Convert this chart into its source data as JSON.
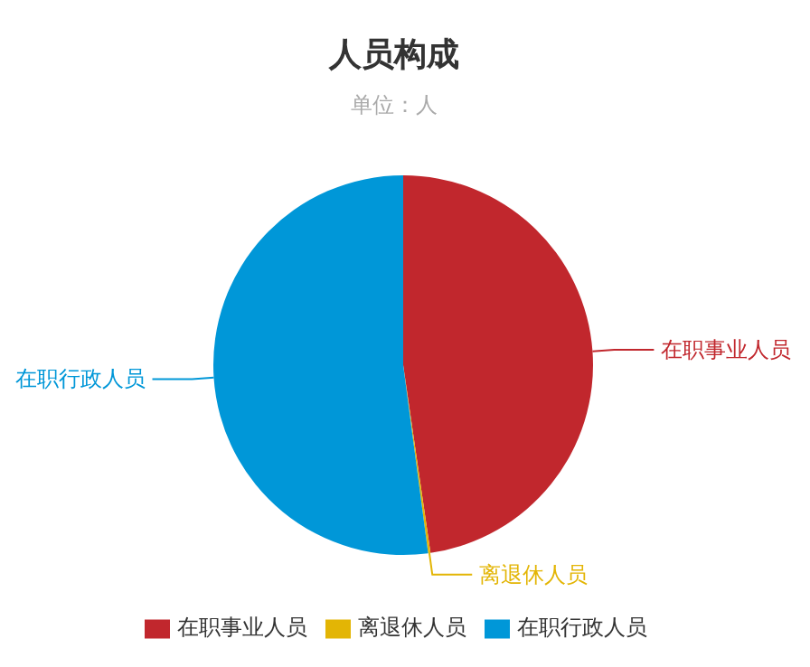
{
  "chart_data": {
    "type": "pie",
    "title": "人员构成",
    "subtitle": "单位：人",
    "categories": [
      "在职事业人员",
      "离退休人员",
      "在职行政人员"
    ],
    "values": [
      47.7,
      0.2,
      52.1
    ],
    "colors": [
      "#c1272d",
      "#e3b505",
      "#0097d8"
    ],
    "legend": "bottom"
  }
}
